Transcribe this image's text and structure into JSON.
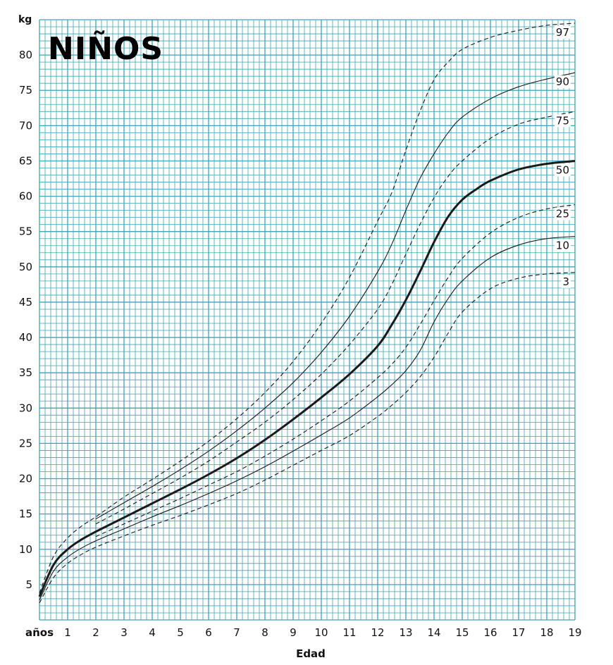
{
  "chart_data": {
    "type": "line",
    "title": "NIÑOS",
    "ylabel": "kg",
    "xlabel": "Edad",
    "x_unit_label": "años",
    "xlim": [
      0,
      19
    ],
    "ylim": [
      0,
      85
    ],
    "x_ticks": [
      1,
      2,
      3,
      4,
      5,
      6,
      7,
      8,
      9,
      10,
      11,
      12,
      13,
      14,
      15,
      16,
      17,
      18,
      19
    ],
    "y_ticks": [
      5,
      10,
      15,
      20,
      25,
      30,
      35,
      40,
      45,
      50,
      55,
      60,
      65,
      70,
      75,
      80
    ],
    "grid": true,
    "grid_color": "#3aa6b8",
    "line_color": "#1a1a1a",
    "series": [
      {
        "name": "97",
        "style": "dashed",
        "x": [
          0,
          0.5,
          1,
          1.5,
          2,
          3,
          4,
          5,
          6,
          7,
          8,
          9,
          10,
          11,
          12,
          12.5,
          13,
          13.5,
          14,
          14.5,
          15,
          16,
          17,
          18,
          19
        ],
        "y": [
          3.8,
          9,
          11.6,
          13.3,
          14.6,
          17.4,
          19.9,
          22.5,
          25.3,
          28.5,
          32.2,
          36.6,
          42,
          48.5,
          56.5,
          60.5,
          66.5,
          72,
          76.5,
          79,
          80.8,
          82.5,
          83.5,
          84.2,
          84.5
        ]
      },
      {
        "name": "90",
        "style": "solid",
        "x": [
          2,
          3,
          4,
          5,
          6,
          7,
          8,
          9,
          10,
          11,
          12,
          12.5,
          13,
          13.5,
          14,
          14.5,
          15,
          16,
          17,
          18,
          19
        ],
        "y": [
          14.3,
          16.6,
          18.9,
          21.3,
          23.9,
          26.8,
          30,
          33.6,
          37.9,
          43,
          49.3,
          53.2,
          58,
          62.5,
          66,
          69,
          71.2,
          73.8,
          75.5,
          76.6,
          77.5
        ]
      },
      {
        "name": "75",
        "style": "dashed",
        "x": [
          2,
          3,
          4,
          5,
          6,
          7,
          8,
          9,
          10,
          11,
          12,
          12.5,
          13,
          13.5,
          14,
          14.5,
          15,
          16,
          17,
          18,
          19
        ],
        "y": [
          13.6,
          15.7,
          17.9,
          20.1,
          22.5,
          25.2,
          28,
          31.2,
          34.8,
          39,
          44,
          47.5,
          51.8,
          56,
          59.8,
          62.8,
          65,
          68.2,
          70.2,
          71.2,
          72
        ]
      },
      {
        "name": "50",
        "style": "solid-bold",
        "x": [
          0,
          0.5,
          1,
          1.5,
          2,
          3,
          4,
          5,
          6,
          7,
          8,
          9,
          10,
          11,
          12,
          12.5,
          13,
          13.5,
          14,
          14.5,
          15,
          15.5,
          16,
          17,
          18,
          19
        ],
        "y": [
          3.3,
          7.8,
          10,
          11.4,
          12.5,
          14.5,
          16.5,
          18.5,
          20.6,
          22.9,
          25.5,
          28.4,
          31.5,
          34.8,
          38.8,
          41.8,
          45.3,
          49.3,
          53.5,
          57.1,
          59.5,
          61,
          62.2,
          63.8,
          64.6,
          65
        ]
      },
      {
        "name": "25",
        "style": "dashed",
        "x": [
          2,
          3,
          4,
          5,
          6,
          7,
          8,
          9,
          10,
          11,
          12,
          12.5,
          13,
          13.5,
          14,
          14.5,
          15,
          16,
          17,
          18,
          19
        ],
        "y": [
          11.8,
          13.6,
          15.4,
          17.2,
          19.1,
          21,
          23.2,
          25.6,
          28.2,
          31,
          34.3,
          36.2,
          38.6,
          41.8,
          45.2,
          48.5,
          51.2,
          54.8,
          57,
          58.2,
          58.8
        ]
      },
      {
        "name": "10",
        "style": "solid",
        "x": [
          0,
          0.5,
          1,
          1.5,
          2,
          3,
          4,
          5,
          6,
          7,
          8,
          9,
          10,
          11,
          12,
          12.5,
          13,
          13.5,
          14,
          14.5,
          15,
          16,
          17,
          18,
          19
        ],
        "y": [
          2.8,
          6.9,
          8.9,
          10.2,
          11.2,
          12.9,
          14.6,
          16.2,
          17.9,
          19.7,
          21.7,
          23.9,
          26.2,
          28.6,
          31.6,
          33.3,
          35.3,
          38.1,
          42.2,
          45.5,
          48,
          51.3,
          53.1,
          54,
          54.3
        ]
      },
      {
        "name": "3",
        "style": "dashed",
        "x": [
          0,
          0.5,
          1,
          1.5,
          2,
          3,
          4,
          5,
          6,
          7,
          8,
          9,
          10,
          11,
          12,
          12.5,
          13,
          13.5,
          14,
          14.5,
          15,
          16,
          17,
          18,
          19
        ],
        "y": [
          2.4,
          6,
          8,
          9.3,
          10.3,
          11.9,
          13.4,
          14.8,
          16.3,
          17.9,
          19.8,
          21.9,
          24,
          26.1,
          28.8,
          30.4,
          32.2,
          34.4,
          37.2,
          40.6,
          43.6,
          46.9,
          48.4,
          49,
          49.2
        ]
      }
    ]
  }
}
